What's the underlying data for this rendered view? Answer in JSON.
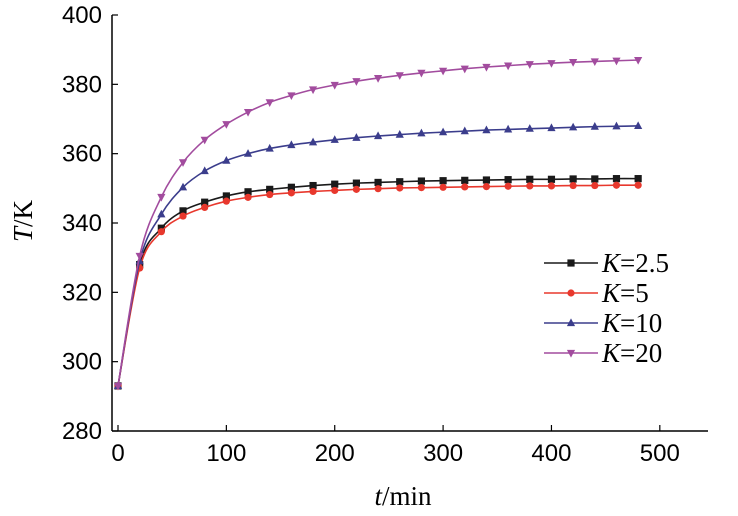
{
  "chart_data": {
    "type": "line",
    "title": "",
    "xlabel": {
      "var": "t",
      "unit": "/min"
    },
    "ylabel": {
      "var": "T",
      "unit": "/K"
    },
    "xlim": [
      0,
      550
    ],
    "ylim": [
      280,
      400
    ],
    "x_ticks": [
      0,
      100,
      200,
      300,
      400,
      500
    ],
    "y_ticks": [
      280,
      300,
      320,
      340,
      360,
      380,
      400
    ],
    "grid": false,
    "legend_position": "center-right",
    "x": [
      0,
      20,
      40,
      60,
      80,
      100,
      120,
      140,
      160,
      180,
      200,
      220,
      240,
      260,
      280,
      300,
      320,
      340,
      360,
      380,
      400,
      420,
      440,
      460,
      480
    ],
    "series": [
      {
        "name": "K=2.5",
        "var": "K",
        "value_label": "=2.5",
        "color": "#1a1a1a",
        "marker": "square",
        "values": [
          293,
          328,
          338.5,
          343.5,
          346,
          347.8,
          349,
          349.7,
          350.3,
          350.8,
          351.2,
          351.5,
          351.7,
          351.9,
          352.1,
          352.2,
          352.3,
          352.4,
          352.5,
          352.6,
          352.6,
          352.7,
          352.7,
          352.8,
          352.8
        ]
      },
      {
        "name": "K=5",
        "var": "K",
        "value_label": "=5",
        "color": "#e8382d",
        "marker": "circle",
        "values": [
          293,
          327,
          337.5,
          342,
          344.5,
          346.3,
          347.4,
          348.2,
          348.7,
          349.1,
          349.4,
          349.7,
          349.9,
          350.1,
          350.2,
          350.3,
          350.4,
          350.5,
          350.6,
          350.7,
          350.7,
          350.8,
          350.8,
          350.9,
          350.9
        ]
      },
      {
        "name": "K=10",
        "var": "K",
        "value_label": "=10",
        "color": "#3b3d8c",
        "marker": "triangle-up",
        "values": [
          293,
          329,
          342.5,
          350.3,
          355,
          358,
          360,
          361.5,
          362.5,
          363.3,
          364,
          364.6,
          365.1,
          365.5,
          365.9,
          366.2,
          366.5,
          366.8,
          367,
          367.2,
          367.4,
          367.6,
          367.8,
          367.9,
          368
        ]
      },
      {
        "name": "K=20",
        "var": "K",
        "value_label": "=20",
        "color": "#a24c9e",
        "marker": "triangle-down",
        "values": [
          293,
          330.5,
          347.5,
          357.5,
          364,
          368.5,
          372,
          374.8,
          376.8,
          378.5,
          379.8,
          380.9,
          381.8,
          382.6,
          383.3,
          383.9,
          384.5,
          385,
          385.4,
          385.8,
          386.1,
          386.4,
          386.6,
          386.8,
          387
        ]
      }
    ]
  }
}
